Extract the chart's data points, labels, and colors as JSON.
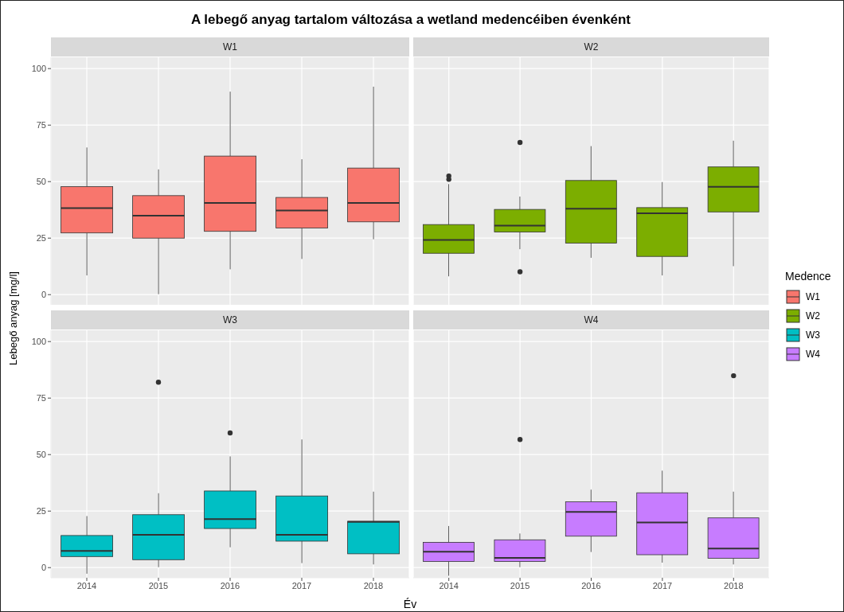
{
  "chart_data": [
    {
      "type": "box",
      "title": "A lebegő anyag tartalom változása a wetland medencéiben évenként",
      "subtitle": "W1",
      "ylabel": "Lebegő anyag [mg/l]",
      "legend_title": "Medence",
      "legend": "right",
      "grid": true,
      "tick_labels": "y",
      "categories": [
        "2014",
        "2015",
        "2016",
        "2017",
        "2018"
      ],
      "ylim": [
        -4.5,
        105
      ],
      "yticks": [
        0,
        25,
        50,
        75,
        100
      ],
      "series": [
        {
          "name": "W1",
          "color": "#f8766d",
          "boxes": [
            {
              "low": 8.5,
              "q1": 27.3,
              "median": 38.3,
              "q3": 47.8,
              "high": 65.1
            },
            {
              "low": 0.2,
              "q1": 25,
              "median": 34.9,
              "q3": 43.8,
              "high": 55.4
            },
            {
              "low": 11.2,
              "q1": 28,
              "median": 40.6,
              "q3": 61.3,
              "high": 89.8
            },
            {
              "low": 15.8,
              "q1": 29.5,
              "median": 37.2,
              "q3": 43,
              "high": 59.9
            },
            {
              "low": 24.5,
              "q1": 32.2,
              "median": 40.6,
              "q3": 56,
              "high": 92
            }
          ]
        }
      ]
    },
    {
      "type": "box",
      "subtitle": "W2",
      "legend": "right",
      "grid": true,
      "tick_labels": false,
      "categories": [
        "2014",
        "2015",
        "2016",
        "2017",
        "2018"
      ],
      "ylim": [
        -4.5,
        105
      ],
      "yticks": [
        0,
        25,
        50,
        75,
        100
      ],
      "series": [
        {
          "name": "W2",
          "color": "#7cae00",
          "boxes": [
            {
              "low": 8.1,
              "q1": 18.3,
              "median": 24.2,
              "q3": 31,
              "high": 48.9,
              "outliers": [
                51,
                52.5
              ]
            },
            {
              "low": 20.1,
              "q1": 27.7,
              "median": 30.5,
              "q3": 37.7,
              "high": 43.4,
              "outliers": [
                10.1,
                67.3
              ]
            },
            {
              "low": 16.3,
              "q1": 22.8,
              "median": 38,
              "q3": 50.5,
              "high": 65.7
            },
            {
              "low": 8.5,
              "q1": 16.9,
              "median": 36,
              "q3": 38.5,
              "high": 49.8
            },
            {
              "low": 12.6,
              "q1": 36.6,
              "median": 47.7,
              "q3": 56.5,
              "high": 68.1
            }
          ]
        }
      ]
    },
    {
      "type": "box",
      "subtitle": "W3",
      "xlabel": "Év",
      "legend": "right",
      "grid": true,
      "categories": [
        "2014",
        "2015",
        "2016",
        "2017",
        "2018"
      ],
      "ylim": [
        -4.5,
        105
      ],
      "yticks": [
        0,
        25,
        50,
        75,
        100
      ],
      "series": [
        {
          "name": "W3",
          "color": "#00bfc4",
          "boxes": [
            {
              "low": -2.7,
              "q1": 4.9,
              "median": 7.4,
              "q3": 14.2,
              "high": 22.8
            },
            {
              "low": 0.2,
              "q1": 3.5,
              "median": 14.5,
              "q3": 23.4,
              "high": 32.9,
              "outliers": [
                82
              ]
            },
            {
              "low": 9,
              "q1": 17.3,
              "median": 21.5,
              "q3": 33.9,
              "high": 49.2,
              "outliers": [
                59.6
              ]
            },
            {
              "low": 2,
              "q1": 11.7,
              "median": 14.5,
              "q3": 31.7,
              "high": 56.7
            },
            {
              "low": 1.4,
              "q1": 6.1,
              "median": 20.2,
              "q3": 20.5,
              "high": 33.6
            }
          ]
        }
      ]
    },
    {
      "type": "box",
      "subtitle": "W4",
      "legend": "right",
      "grid": true,
      "tick_labels": "x",
      "categories": [
        "2014",
        "2015",
        "2016",
        "2017",
        "2018"
      ],
      "ylim": [
        -4.5,
        105
      ],
      "yticks": [
        0,
        25,
        50,
        75,
        100
      ],
      "series": [
        {
          "name": "W4",
          "color": "#c77cff",
          "boxes": [
            {
              "low": -3.6,
              "q1": 2.7,
              "median": 7,
              "q3": 11.2,
              "high": 18.4
            },
            {
              "low": 0.2,
              "q1": 2.7,
              "median": 4.3,
              "q3": 12.3,
              "high": 15.1,
              "outliers": [
                56.7
              ]
            },
            {
              "low": 6.9,
              "q1": 13.9,
              "median": 24.6,
              "q3": 29.1,
              "high": 34.5
            },
            {
              "low": 2.2,
              "q1": 5.7,
              "median": 20,
              "q3": 33.1,
              "high": 42.9
            },
            {
              "low": 1.4,
              "q1": 4.1,
              "median": 8.4,
              "q3": 22,
              "high": 33.6,
              "outliers": [
                84.9
              ]
            }
          ]
        }
      ]
    }
  ]
}
